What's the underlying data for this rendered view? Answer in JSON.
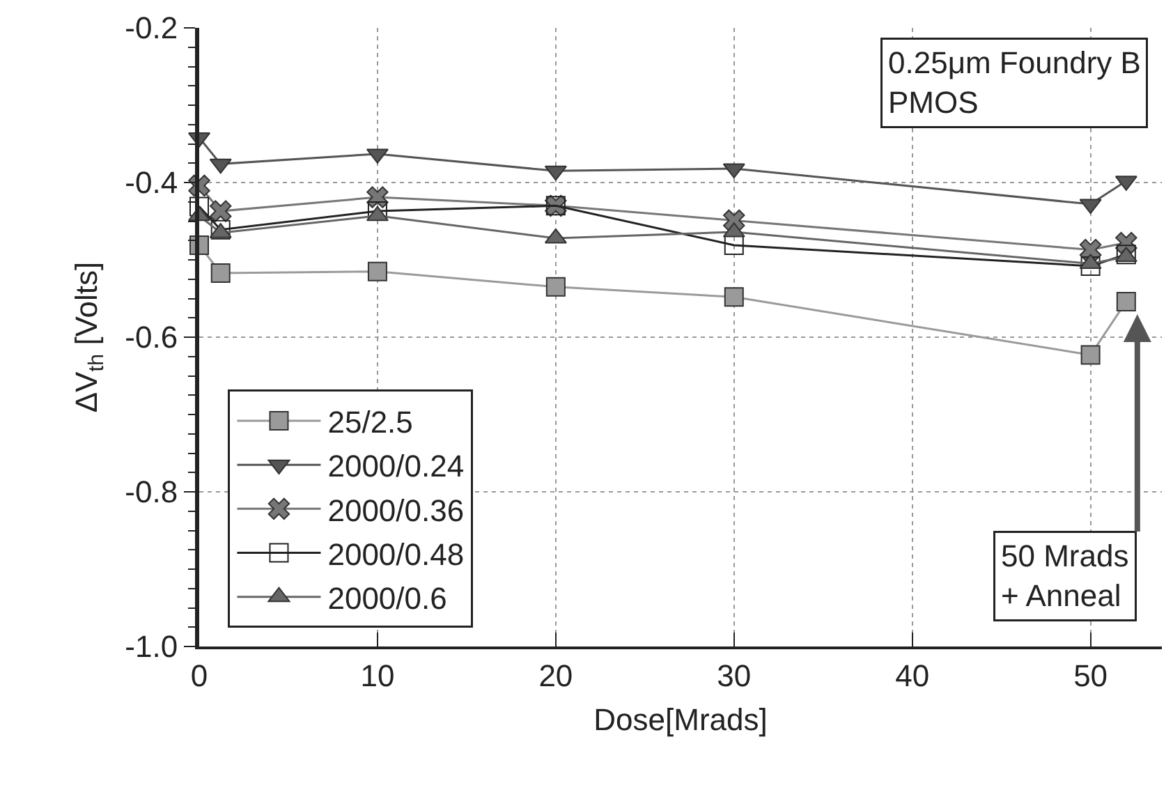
{
  "chart_data": {
    "type": "line",
    "xlabel": "Dose[Mrads]",
    "ylabel": "ΔV$_{th}$ [Volts]",
    "x": [
      0,
      1.2,
      10,
      20,
      30,
      50,
      52
    ],
    "series": [
      {
        "name": "25/2.5",
        "color": "#9a9a9a",
        "marker": "square",
        "values": [
          -0.481,
          -0.517,
          -0.515,
          -0.535,
          -0.548,
          -0.623,
          -0.554
        ]
      },
      {
        "name": "2000/0.24",
        "color": "#555555",
        "marker": "triangle-down",
        "values": [
          -0.342,
          -0.376,
          -0.363,
          -0.385,
          -0.382,
          -0.428,
          -0.398
        ]
      },
      {
        "name": "2000/0.36",
        "color": "#777777",
        "marker": "cross",
        "values": [
          -0.404,
          -0.437,
          -0.419,
          -0.43,
          -0.449,
          -0.487,
          -0.478
        ]
      },
      {
        "name": "2000/0.48",
        "color": "#222222",
        "marker": "square-open",
        "values": [
          -0.431,
          -0.461,
          -0.437,
          -0.43,
          -0.481,
          -0.508,
          -0.493
        ]
      },
      {
        "name": "2000/0.6",
        "color": "#666666",
        "marker": "triangle",
        "values": [
          -0.443,
          -0.465,
          -0.443,
          -0.472,
          -0.464,
          -0.505,
          -0.496
        ]
      }
    ],
    "xlim": [
      0,
      54
    ],
    "xticks": [
      0,
      10,
      20,
      30,
      40,
      50
    ],
    "ylim": [
      -1.0,
      -0.2
    ],
    "yticks": [
      -0.2,
      -0.4,
      -0.6,
      -0.8,
      {
        "value": -1.0,
        "label": "-1.0"
      }
    ],
    "grid": true,
    "legend": "bottom left",
    "line_style": "solid",
    "annotations": [
      "0.25μm Foundry B\nPMOS",
      {
        "text": "50 Mrads\n+ Anneal",
        "x": 52,
        "y": -0.554
      }
    ]
  }
}
